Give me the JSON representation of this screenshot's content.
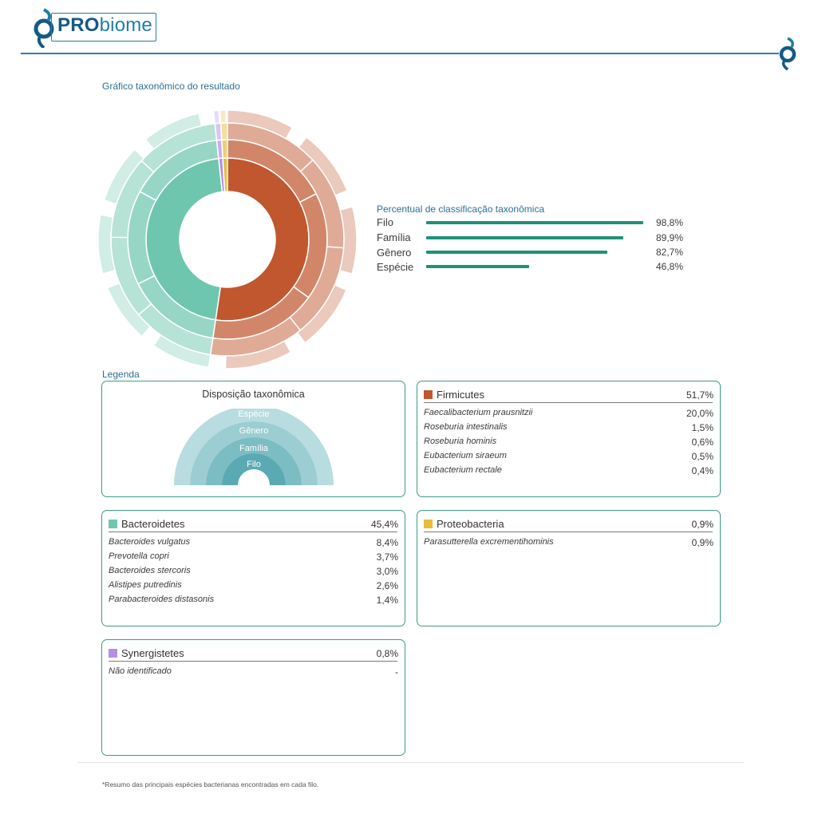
{
  "header": {
    "brand_bold": "PRO",
    "brand_light": "biome"
  },
  "chart_title": "Gráfico taxonômico do resultado",
  "classification": {
    "title": "Percentual de classificação taxonômica",
    "rows": [
      {
        "label": "Filo",
        "value": 98.8,
        "text": "98,8%"
      },
      {
        "label": "Família",
        "value": 89.9,
        "text": "89,9%"
      },
      {
        "label": "Gênero",
        "value": 82.7,
        "text": "82,7%"
      },
      {
        "label": "Espécie",
        "value": 46.8,
        "text": "46,8%"
      }
    ]
  },
  "legend": {
    "title": "Legenda",
    "layout_title": "Disposição taxonômica",
    "layers": [
      "Espécie",
      "Gênero",
      "Família",
      "Filo"
    ]
  },
  "phyla": [
    {
      "name": "Firmicutes",
      "pct": "51,7%",
      "color": "#c0572f",
      "species": [
        {
          "name": "Faecalibacterium prausnitzii",
          "pct": "20,0%"
        },
        {
          "name": "Roseburia intestinalis",
          "pct": "1,5%"
        },
        {
          "name": "Roseburia hominis",
          "pct": "0,6%"
        },
        {
          "name": "Eubacterium siraeum",
          "pct": "0,5%"
        },
        {
          "name": "Eubacterium rectale",
          "pct": "0,4%"
        }
      ]
    },
    {
      "name": "Bacteroidetes",
      "pct": "45,4%",
      "color": "#6fc6ae",
      "species": [
        {
          "name": "Bacteroides vulgatus",
          "pct": "8,4%"
        },
        {
          "name": "Prevotella copri",
          "pct": "3,7%"
        },
        {
          "name": "Bacteroides stercoris",
          "pct": "3,0%"
        },
        {
          "name": "Alistipes putredinis",
          "pct": "2,6%"
        },
        {
          "name": "Parabacteroides distasonis",
          "pct": "1,4%"
        }
      ]
    },
    {
      "name": "Proteobacteria",
      "pct": "0,9%",
      "color": "#e8bd3c",
      "species": [
        {
          "name": "Parasutterella excrementihominis",
          "pct": "0,9%"
        }
      ]
    },
    {
      "name": "Synergistetes",
      "pct": "0,8%",
      "color": "#b48ee6",
      "species": [
        {
          "name": "Não identificado",
          "pct": "-"
        }
      ]
    }
  ],
  "chart_data": [
    {
      "type": "sunburst",
      "title": "Gráfico taxonômico do resultado",
      "rings": [
        "Filo",
        "Família",
        "Gênero",
        "Espécie"
      ],
      "series": [
        {
          "name": "Firmicutes",
          "value": 51.7,
          "color": "#c0572f"
        },
        {
          "name": "Bacteroidetes",
          "value": 45.4,
          "color": "#6fc6ae"
        },
        {
          "name": "Proteobacteria",
          "value": 0.9,
          "color": "#e8bd3c"
        },
        {
          "name": "Synergistetes",
          "value": 0.8,
          "color": "#b48ee6"
        }
      ]
    },
    {
      "type": "bar",
      "title": "Percentual de classificação taxonômica",
      "categories": [
        "Filo",
        "Família",
        "Gênero",
        "Espécie"
      ],
      "values": [
        98.8,
        89.9,
        82.7,
        46.8
      ],
      "xlim": [
        0,
        100
      ]
    }
  ],
  "footnote": "*Resumo das principais espécies bacterianas encontradas em cada filo."
}
